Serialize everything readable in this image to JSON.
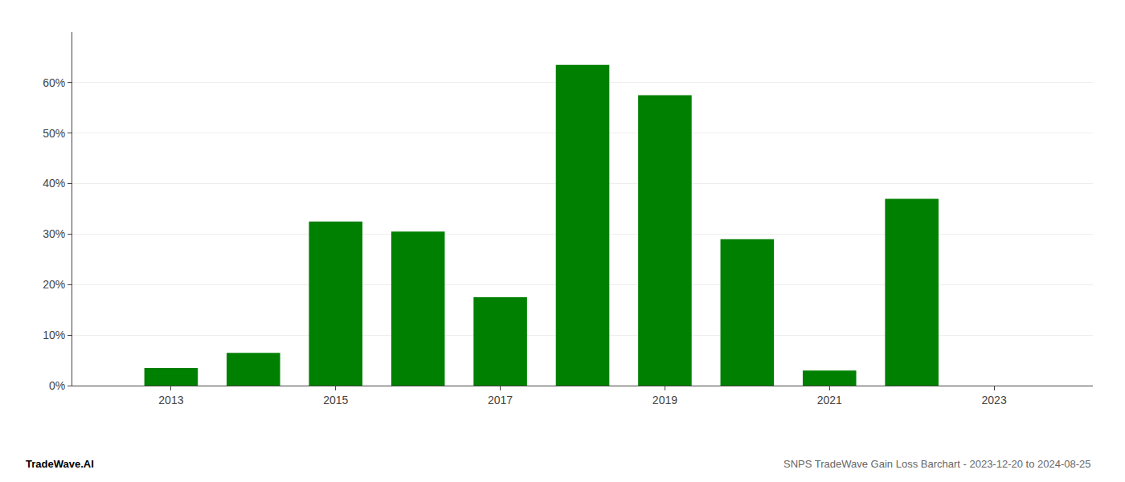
{
  "chart_data": {
    "type": "bar",
    "title": "SNPS TradeWave Gain Loss Barchart - 2023-12-20 to 2024-08-25",
    "annotations": [
      "TradeWave.AI"
    ],
    "x": [
      2013,
      2014,
      2015,
      2016,
      2017,
      2018,
      2019,
      2020,
      2021,
      2022,
      2023
    ],
    "values": [
      0.035,
      0.065,
      0.325,
      0.305,
      0.175,
      0.635,
      0.575,
      0.29,
      0.03,
      0.37,
      0.0
    ],
    "color": "#008000",
    "xlim": [
      2011.8,
      2024.2
    ],
    "xticks": [
      2013,
      2015,
      2017,
      2019,
      2021,
      2023
    ],
    "ylim": [
      0,
      0.7
    ],
    "yticks": [
      {
        "value": 0.0,
        "label": "0%"
      },
      {
        "value": 0.1,
        "label": "10%"
      },
      {
        "value": 0.2,
        "label": "20%"
      },
      {
        "value": 0.3,
        "label": "30%"
      },
      {
        "value": 0.4,
        "label": "40%"
      },
      {
        "value": 0.5,
        "label": "50%"
      },
      {
        "value": 0.6,
        "label": "60%"
      }
    ],
    "grid": true
  }
}
